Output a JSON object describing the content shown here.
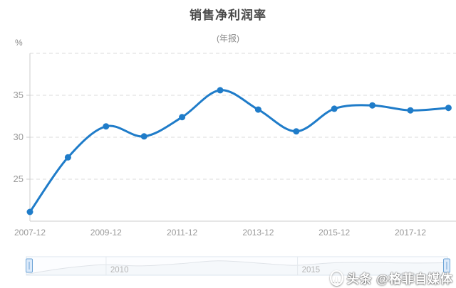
{
  "chart_data": {
    "type": "line",
    "title": "销售净利润率",
    "subtitle": "(年报)",
    "unit": "%",
    "x": [
      "2007-12",
      "2008-12",
      "2009-12",
      "2010-12",
      "2011-12",
      "2012-12",
      "2013-12",
      "2014-12",
      "2015-12",
      "2016-12",
      "2017-12",
      "2018-12"
    ],
    "values": [
      21.1,
      27.6,
      31.3,
      30.1,
      32.4,
      35.6,
      33.3,
      30.7,
      33.4,
      33.8,
      33.2,
      33.5
    ],
    "xtick_labels": [
      "2007-12",
      "2009-12",
      "2011-12",
      "2013-12",
      "2015-12",
      "2017-12"
    ],
    "yticks": [
      25,
      30,
      35
    ],
    "ylim": [
      20,
      40
    ],
    "grid": "horizontal-dashed",
    "legend": "none",
    "line_color": "#1f7cc9",
    "marker_color": "#1f7cc9"
  },
  "navigator": {
    "tick_labels": [
      "2010",
      "2015"
    ],
    "handle_color": "#6ba3d6",
    "handle_fill": "#dceafa"
  },
  "watermark": {
    "text": "头条 @格菲自媒体"
  }
}
